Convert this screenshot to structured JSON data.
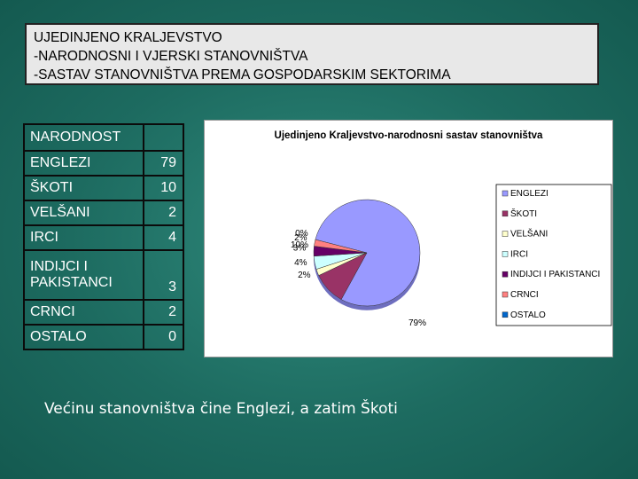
{
  "header": {
    "line1": "UJEDINJENO KRALJEVSTVO",
    "line2": "-NARODNOSNI  I VJERSKI  STANOVNIŠTVA",
    "line3": "-SASTAV  STANOVNIŠTVA PREMA GOSPODARSKIM SEKTORIMA"
  },
  "table": {
    "header": "NARODNOST",
    "rows": [
      {
        "name": "ENGLEZI",
        "value": "79"
      },
      {
        "name": "ŠKOTI",
        "value": "10"
      },
      {
        "name": "VELŠANI",
        "value": "2"
      },
      {
        "name": "IRCI",
        "value": "4"
      },
      {
        "name": "INDIJCI I PAKISTANCI",
        "value": "3"
      },
      {
        "name": "CRNCI",
        "value": "2"
      },
      {
        "name": "OSTALO",
        "value": "0"
      }
    ]
  },
  "chart_data": {
    "type": "pie",
    "title": "Ujedinjeno Kraljevstvo-narodnosni sastav stanovništva",
    "categories": [
      "ENGLEZI",
      "ŠKOTI",
      "VELŠANI",
      "IRCI",
      "INDIJCI I PAKISTANCI",
      "CRNCI",
      "OSTALO"
    ],
    "values": [
      79,
      10,
      2,
      4,
      3,
      2,
      0
    ],
    "labels": [
      "79%",
      "10%",
      "2%",
      "4%",
      "3%",
      "2%",
      "0%"
    ],
    "colors": [
      "#9999ff",
      "#993366",
      "#ffffcc",
      "#ccffff",
      "#660066",
      "#ff8080",
      "#0066cc"
    ],
    "legend": "right"
  },
  "caption": "Većinu stanovništva čine Englezi, a zatim Škoti"
}
